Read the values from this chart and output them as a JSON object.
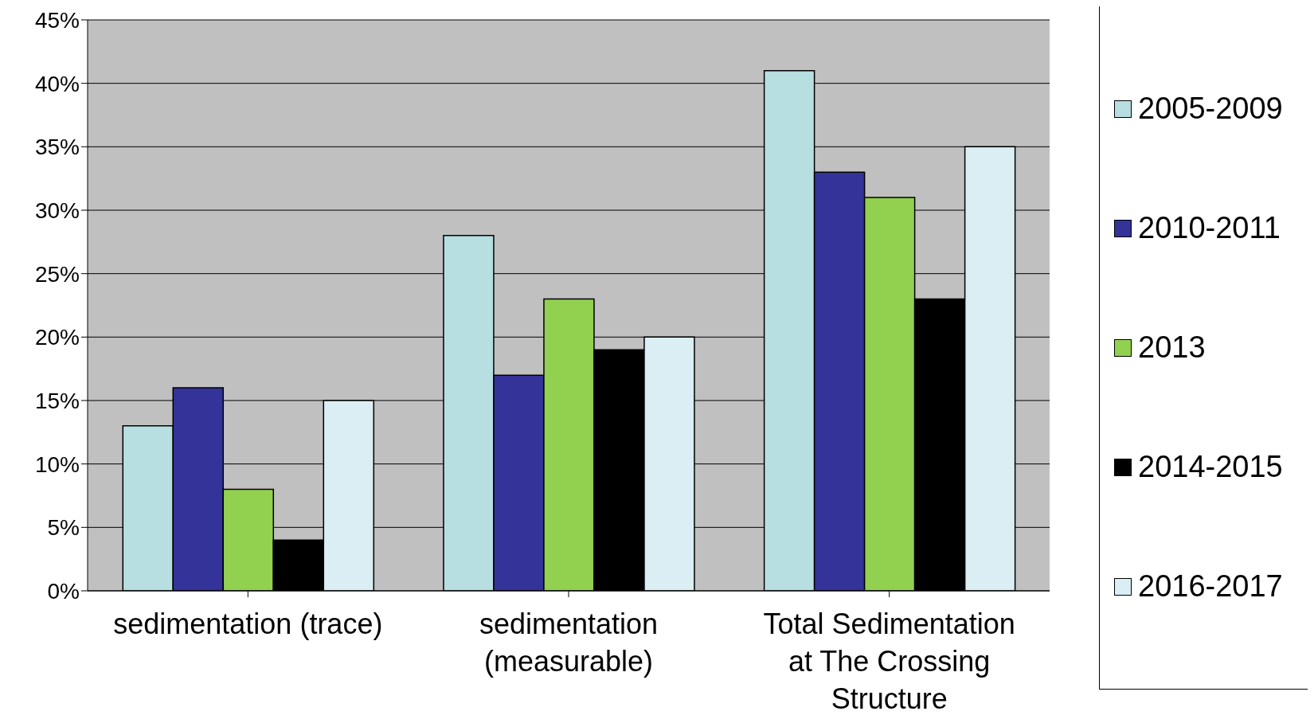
{
  "chart_data": {
    "type": "bar",
    "categories": [
      "sedimentation (trace)",
      "sedimentation (measurable)",
      "Total Sedimentation at The Crossing Structure"
    ],
    "series": [
      {
        "name": "2005-2009",
        "color": "#b7dee1",
        "values": [
          13,
          28,
          41
        ]
      },
      {
        "name": "2010-2011",
        "color": "#333399",
        "values": [
          16,
          17,
          33
        ]
      },
      {
        "name": "2013",
        "color": "#92d050",
        "values": [
          8,
          23,
          31
        ]
      },
      {
        "name": "2014-2015",
        "color": "#000000",
        "values": [
          4,
          19,
          23
        ]
      },
      {
        "name": "2016-2017",
        "color": "#daeef3",
        "values": [
          15,
          20,
          35
        ]
      }
    ],
    "ylim": [
      0,
      45
    ],
    "yticks": [
      {
        "value": 0,
        "label": "0%"
      },
      {
        "value": 5,
        "label": "5%"
      },
      {
        "value": 10,
        "label": "10%"
      },
      {
        "value": 15,
        "label": "15%"
      },
      {
        "value": 20,
        "label": "20%"
      },
      {
        "value": 25,
        "label": "25%"
      },
      {
        "value": 30,
        "label": "30%"
      },
      {
        "value": 35,
        "label": "35%"
      },
      {
        "value": 40,
        "label": "40%"
      },
      {
        "value": 45,
        "label": "45%"
      }
    ],
    "grid": "y",
    "legend": "right"
  }
}
